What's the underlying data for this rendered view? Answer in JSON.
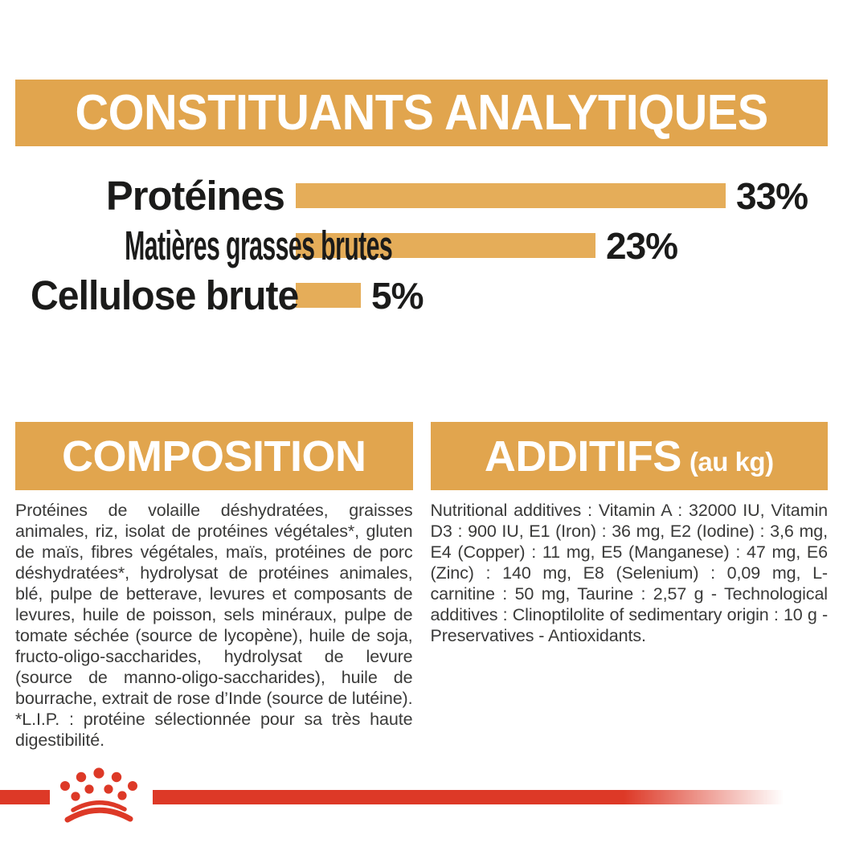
{
  "colors": {
    "gold": "#E1A54E",
    "bar_gold": "#E5AD59",
    "red": "#DD3927",
    "heading_text": "#FFFFFF",
    "chart_text": "#1B1B1A",
    "body_text": "#3A3A39",
    "background": "#FFFFFF"
  },
  "analytical_section": {
    "title": "CONSTITUANTS ANALYTIQUES"
  },
  "chart_data": {
    "type": "bar",
    "orientation": "horizontal",
    "title": "CONSTITUANTS ANALYTIQUES",
    "categories": [
      "Protéines",
      "Matières grasses brutes",
      "Cellulose brute"
    ],
    "values": [
      33,
      23,
      5
    ],
    "value_labels": [
      "33%",
      "23%",
      "5%"
    ],
    "unit": "%",
    "xlim": [
      0,
      33
    ],
    "bar_color": "#E5AD59",
    "grid": false,
    "legend": false
  },
  "composition_section": {
    "title": "COMPOSITION",
    "body": "Protéines de volaille déshydratées, graisses animales, riz, isolat de protéines végétales*, gluten de maïs, fibres végétales, maïs, protéines de porc déshydratées*, hydrolysat de protéines animales, blé, pulpe de betterave, levures et composants de levures, huile de poisson, sels minéraux, pulpe de tomate séchée (source de lycopène), huile de soja, fructo-oligo-saccharides, hydrolysat de levure (source de manno-oligo-saccharides), huile de bourrache, extrait de rose d’Inde (source de lutéine). *L.I.P. : protéine sélectionnée pour sa très haute digestibilité."
  },
  "additives_section": {
    "title": "ADDITIFS",
    "title_suffix": "(au kg)",
    "body": "Nutritional additives : Vitamin A : 32000 IU, Vitamin D3 : 900 IU, E1 (Iron) : 36 mg, E2 (Iodine) : 3,6 mg, E4 (Copper) : 11 mg, E5 (Manganese) : 47 mg, E6 (Zinc) : 140 mg, E8 (Selenium) : 0,09 mg, L-carnitine : 50 mg, Taurine : 2,57 g - Technological additives : Clinoptilolite of sedimentary origin : 10 g - Preservatives - Antioxidants."
  },
  "footer": {
    "logo_icon": "royal-canin-crown-icon"
  }
}
